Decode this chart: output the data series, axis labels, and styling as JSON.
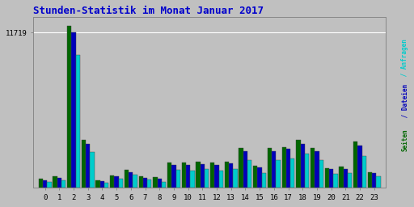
{
  "title": "Stunden-Statistik im Monat Januar 2017",
  "title_color": "#0000CC",
  "title_fontsize": 9,
  "background_color": "#C0C0C0",
  "plot_bg_color": "#C0C0C0",
  "ytick_label": "11719",
  "ytick_value": 11719,
  "hours": [
    0,
    1,
    2,
    3,
    4,
    5,
    6,
    7,
    8,
    9,
    10,
    11,
    12,
    13,
    14,
    15,
    16,
    17,
    18,
    19,
    20,
    21,
    22,
    23
  ],
  "seiten": [
    700,
    900,
    12200,
    3600,
    600,
    950,
    1350,
    850,
    800,
    1900,
    1900,
    2000,
    1900,
    2000,
    3000,
    1700,
    3000,
    3100,
    3600,
    3000,
    1500,
    1600,
    3500,
    1200
  ],
  "dateien": [
    600,
    750,
    11719,
    3300,
    500,
    850,
    1200,
    750,
    700,
    1750,
    1750,
    1800,
    1750,
    1850,
    2800,
    1550,
    2800,
    2950,
    3350,
    2800,
    1400,
    1450,
    3200,
    1100
  ],
  "anfragen": [
    450,
    600,
    10000,
    2700,
    380,
    700,
    1000,
    620,
    480,
    1350,
    1300,
    1400,
    1300,
    1400,
    2100,
    1150,
    2100,
    2200,
    2600,
    2100,
    1050,
    1100,
    2400,
    900
  ],
  "color_seiten": "#006600",
  "color_dateien": "#0000BB",
  "color_anfragen": "#00CCCC",
  "bar_width": 0.3,
  "figsize": [
    5.12,
    2.56
  ],
  "dpi": 100,
  "ylabel_seiten": "Seiten",
  "ylabel_dateien": " / Dateien",
  "ylabel_anfragen": " / Anfragen",
  "ylabel_color_seiten": "#006600",
  "ylabel_color_dateien": "#0000BB",
  "ylabel_color_anfragen": "#00CCCC"
}
